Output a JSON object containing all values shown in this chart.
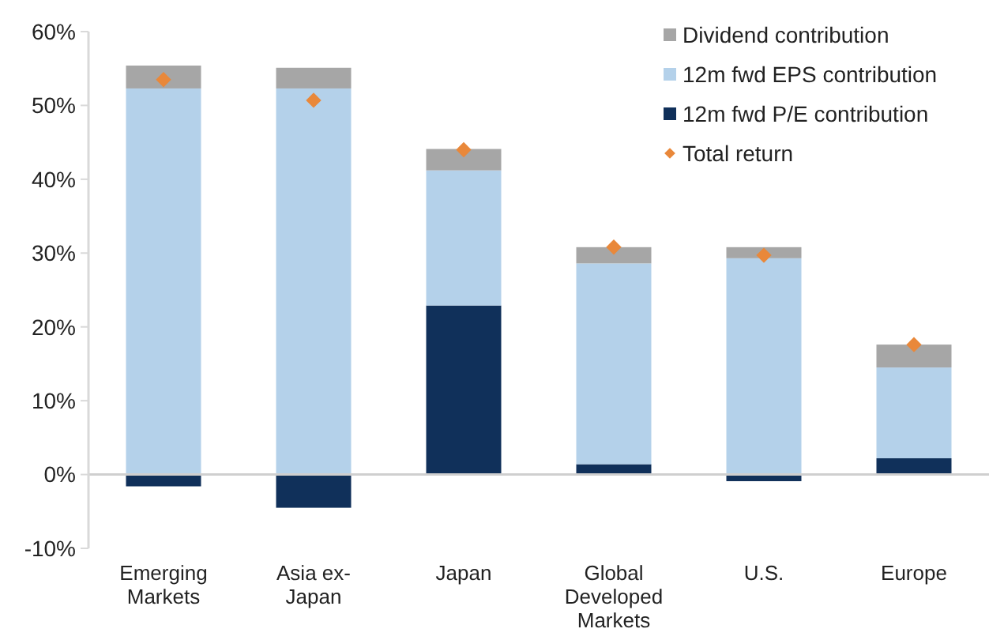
{
  "chart_data": {
    "type": "bar",
    "stacked": true,
    "categories": [
      "Emerging Markets",
      "Asia ex-Japan",
      "Japan",
      "Global Developed Markets",
      "U.S.",
      "Europe"
    ],
    "series": [
      {
        "name": "12m fwd P/E contribution",
        "color": "#10305a",
        "values": [
          -1.6,
          -4.5,
          22.9,
          1.4,
          -0.9,
          2.2
        ]
      },
      {
        "name": "12m fwd EPS contribution",
        "color": "#b4d1ea",
        "values": [
          52.3,
          52.3,
          18.3,
          27.2,
          29.3,
          12.3
        ]
      },
      {
        "name": "Dividend contribution",
        "color": "#a6a6a6",
        "values": [
          3.1,
          2.8,
          2.9,
          2.2,
          1.5,
          3.1
        ]
      },
      {
        "name": "Total return",
        "type": "scatter",
        "marker": "diamond",
        "color": "#e9883a",
        "x": [
          "Emerging Markets",
          "Asia ex-Japan",
          "Japan",
          "Global Developed Markets",
          "U.S.",
          "Europe"
        ],
        "values": [
          53.5,
          50.7,
          44.0,
          30.8,
          29.7,
          17.6
        ]
      }
    ],
    "ylim": [
      -10,
      60
    ],
    "yticks": [
      {
        "value": -10,
        "label": "-10%"
      },
      {
        "value": 0,
        "label": "0%"
      },
      {
        "value": 10,
        "label": "10%"
      },
      {
        "value": 20,
        "label": "20%"
      },
      {
        "value": 30,
        "label": "30%"
      },
      {
        "value": 40,
        "label": "40%"
      },
      {
        "value": 50,
        "label": "50%"
      },
      {
        "value": 60,
        "label": "60%"
      }
    ],
    "legend": "top right"
  }
}
